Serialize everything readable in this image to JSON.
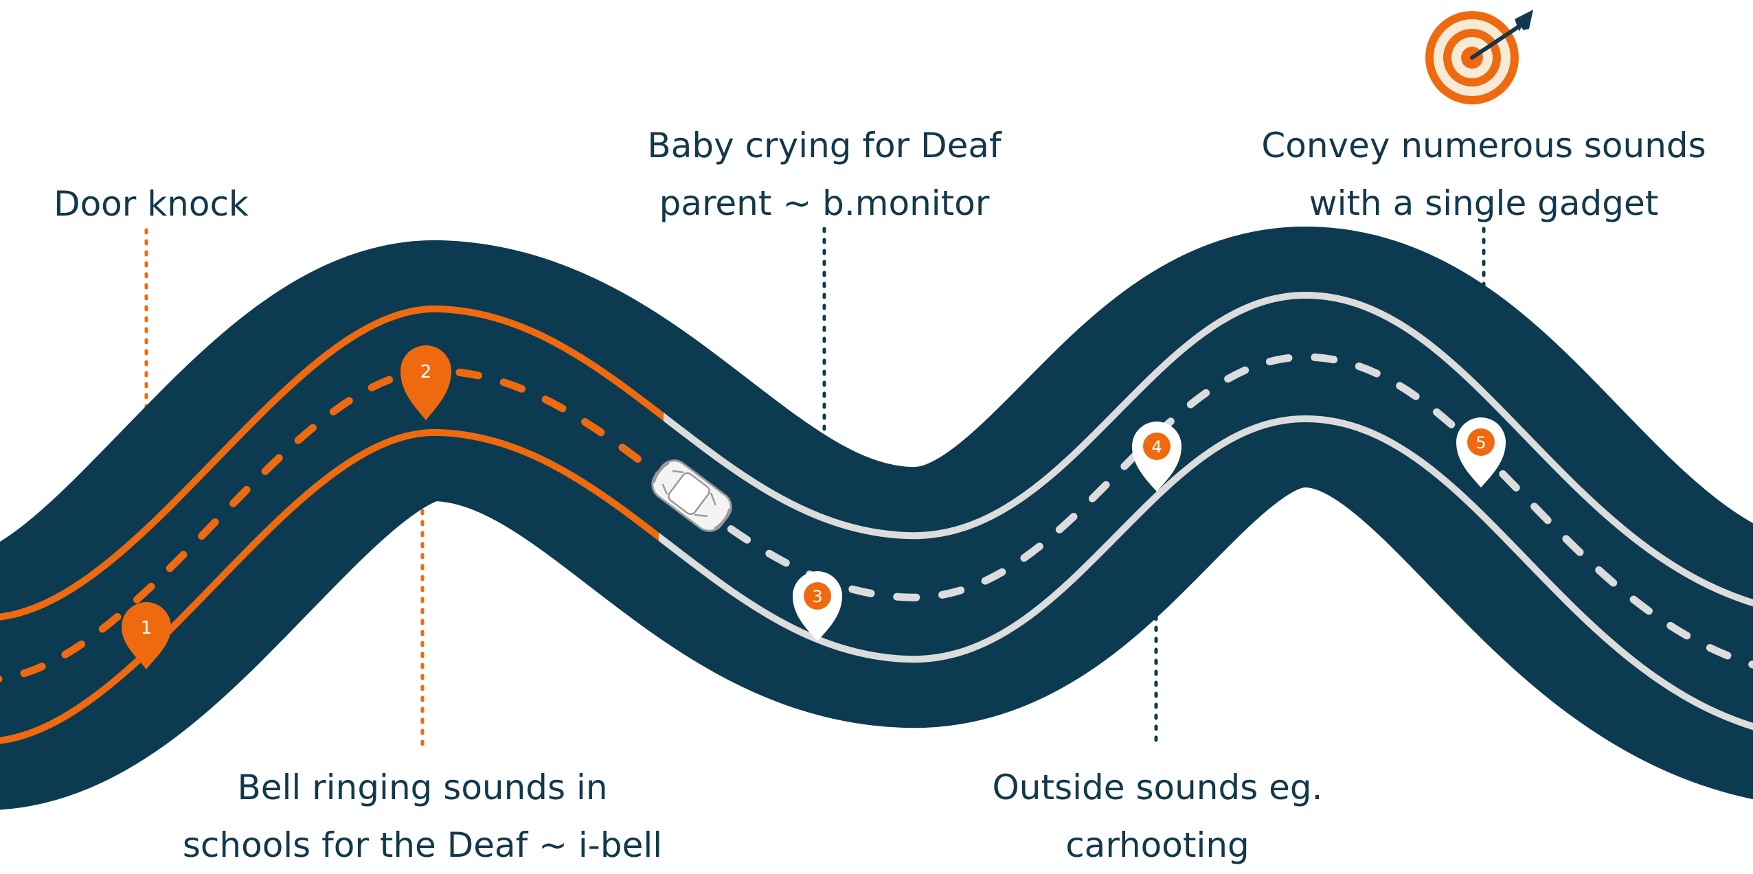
{
  "milestones": [
    {
      "number": "1",
      "lines": [
        "Door knock"
      ]
    },
    {
      "number": "2",
      "lines": [
        "Bell ringing sounds in",
        "schools for the Deaf ~ i-bell"
      ]
    },
    {
      "number": "3",
      "lines": [
        "Baby crying for Deaf",
        "parent ~ b.monitor"
      ]
    },
    {
      "number": "4",
      "lines": [
        "Outside sounds eg.",
        "carhooting"
      ]
    },
    {
      "number": "5",
      "lines": [
        "Convey numerous sounds",
        "with a single gadget"
      ]
    }
  ],
  "icons": {
    "goal": "target-with-dart-icon",
    "vehicle": "car-icon",
    "marker": "map-pin-icon"
  },
  "colors": {
    "road": "#0c3a50",
    "accent": "#ef6a0e",
    "completed_line": "#ef6a0e",
    "pending_line": "#dcdcdc",
    "text": "#12384b"
  }
}
